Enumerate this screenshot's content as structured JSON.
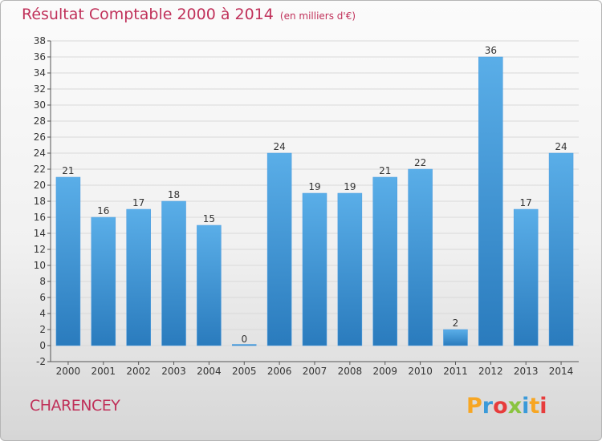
{
  "header": {
    "title": "Résultat Comptable 2000 à 2014",
    "unit": "(en milliers d'€)"
  },
  "footer": {
    "commune": "CHARENCEY",
    "logo_letters": [
      "P",
      "r",
      "o",
      "x",
      "i",
      "t",
      "i"
    ],
    "logo_colors": [
      "#f7a623",
      "#3a9ad9",
      "#e73c3c",
      "#8ac43f",
      "#3a9ad9",
      "#f7a623",
      "#e73c3c"
    ]
  },
  "chart_data": {
    "type": "bar",
    "title": "Résultat Comptable 2000 à 2014",
    "subtitle": "(en milliers d'€)",
    "categories": [
      "2000",
      "2001",
      "2002",
      "2003",
      "2004",
      "2005",
      "2006",
      "2007",
      "2008",
      "2009",
      "2010",
      "2011",
      "2012",
      "2013",
      "2014"
    ],
    "values": [
      21,
      16,
      17,
      18,
      15,
      0,
      24,
      19,
      19,
      21,
      22,
      2,
      36,
      17,
      24
    ],
    "ylim": [
      -2,
      38
    ],
    "yticks": [
      -2,
      0,
      2,
      4,
      6,
      8,
      10,
      12,
      14,
      16,
      18,
      20,
      22,
      24,
      26,
      28,
      30,
      32,
      34,
      36,
      38
    ],
    "grid": "horizontal",
    "bar_color_top": "#5aaee8",
    "bar_color_bottom": "#2a7bbd",
    "xlabel": "",
    "ylabel": ""
  }
}
